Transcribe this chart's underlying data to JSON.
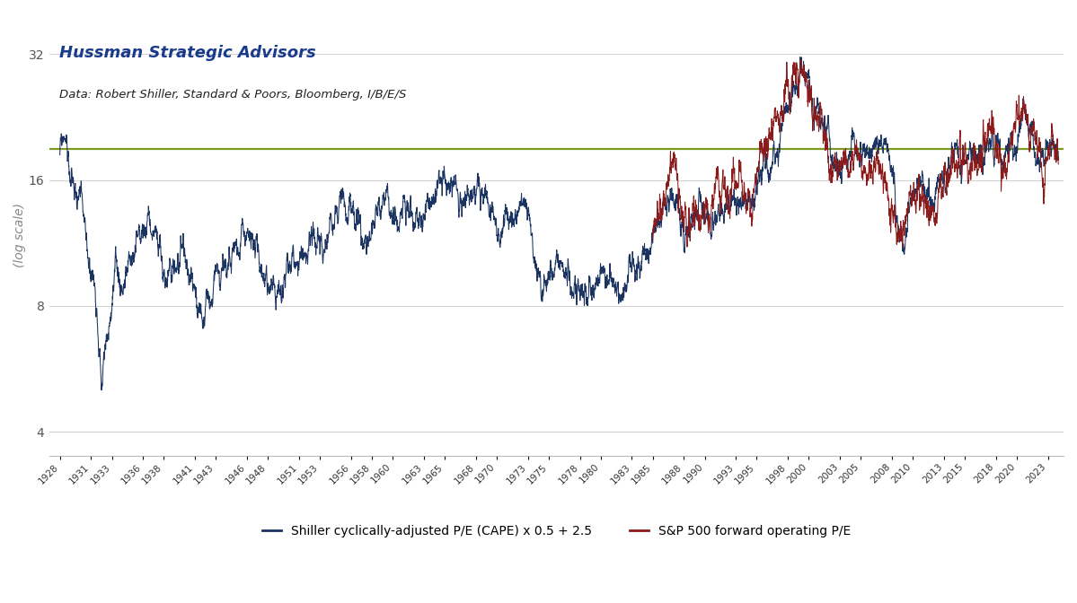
{
  "title1": "Hussman Strategic Advisors",
  "title2": "Data: Robert Shiller, Standard & Poors, Bloomberg, I/B/E/S",
  "ylabel": "(log scale)",
  "yticks": [
    4,
    8,
    16,
    32
  ],
  "ylim": [
    3.5,
    40
  ],
  "xlim": [
    1927.0,
    2024.5
  ],
  "horizontal_line_y": 19.0,
  "horizontal_line_color": "#7a9a20",
  "cape_color": "#1a3361",
  "fpe_color": "#8b1a1a",
  "cape_label": "Shiller cyclically-adjusted P/E (CAPE) x 0.5 + 2.5",
  "fpe_label": "S&P 500 forward operating P/E",
  "title1_color": "#1a3a8b",
  "title2_color": "#222222",
  "background_color": "#ffffff",
  "grid_color": "#d0d0d0",
  "x_tick_years": [
    1928,
    1931,
    1933,
    1936,
    1938,
    1941,
    1943,
    1946,
    1948,
    1951,
    1953,
    1956,
    1958,
    1960,
    1963,
    1965,
    1968,
    1970,
    1973,
    1975,
    1978,
    1980,
    1983,
    1985,
    1988,
    1990,
    1993,
    1995,
    1998,
    2000,
    2003,
    2005,
    2008,
    2010,
    2013,
    2015,
    2018,
    2020,
    2023
  ]
}
